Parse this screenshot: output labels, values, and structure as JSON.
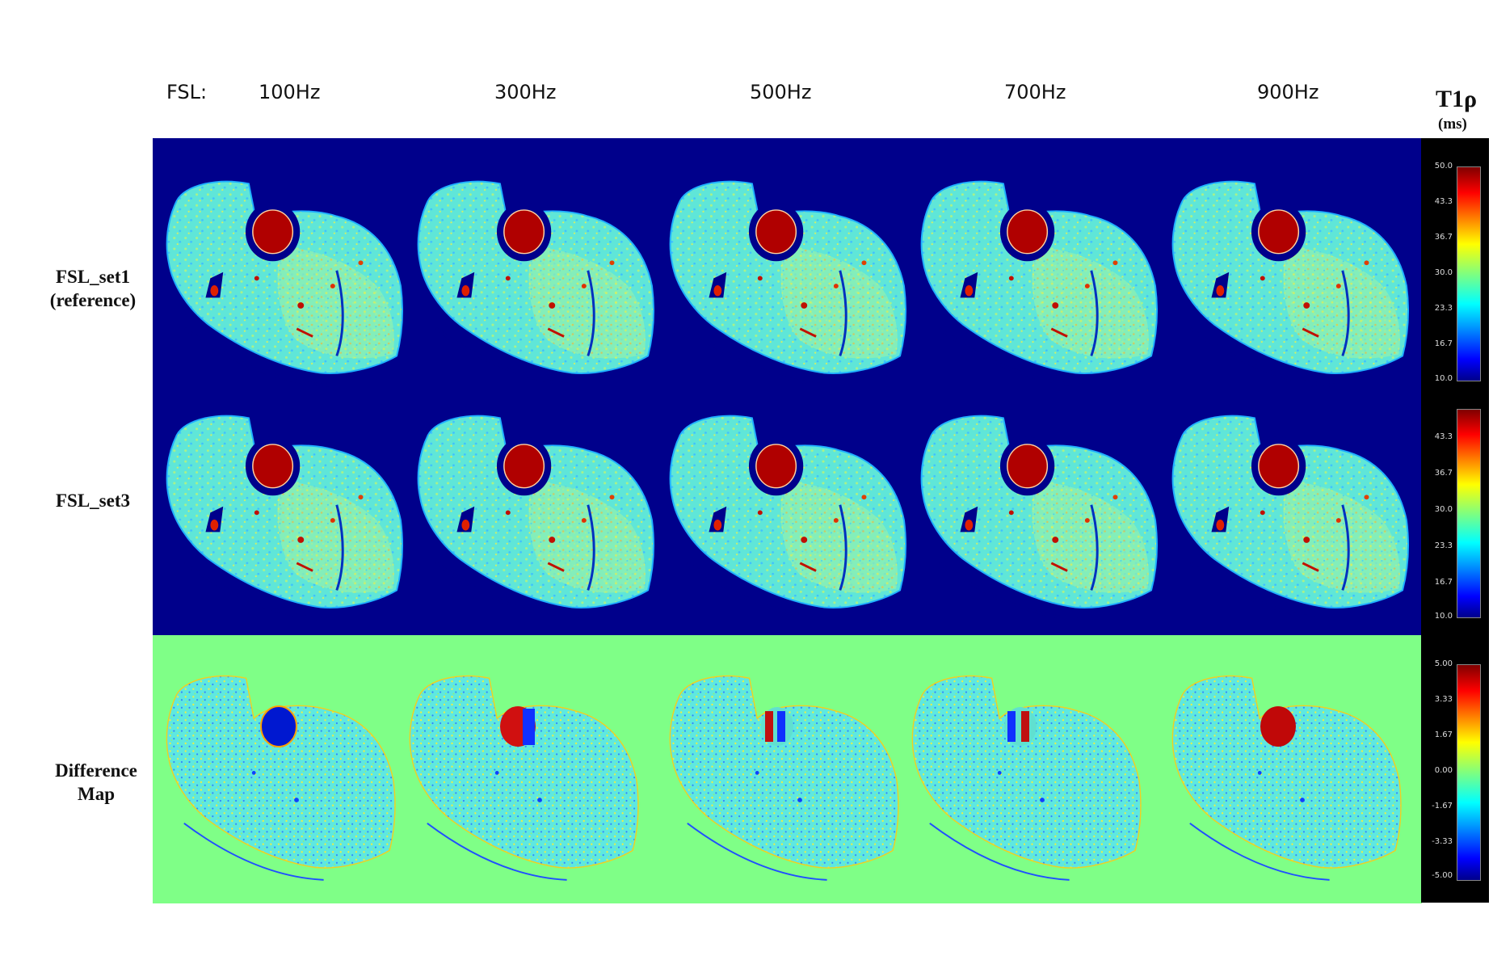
{
  "header": {
    "prefix": "FSL:",
    "frequencies": [
      "100Hz",
      "300Hz",
      "500Hz",
      "700Hz",
      "900Hz"
    ]
  },
  "rows": {
    "row1_line1": "FSL_set1",
    "row1_line2": "(reference)",
    "row2": "FSL_set3",
    "row3_line1": "Difference",
    "row3_line2": "Map"
  },
  "colorbar": {
    "title": "T1ρ",
    "unit": "(ms)",
    "ticks_set1": [
      "50.0",
      "43.3",
      "36.7",
      "30.0",
      "23.3",
      "16.7",
      "10.0"
    ],
    "ticks_set3": [
      "43.3",
      "36.7",
      "30.0",
      "23.3",
      "16.7",
      "10.0"
    ],
    "ticks_diff": [
      "5.00",
      "3.33",
      "1.67",
      "0.00",
      "-1.67",
      "-3.33",
      "-5.00"
    ]
  },
  "colors": {
    "map_background": "#00008b",
    "diff_background": "#7fff87",
    "tissue": "#5fe6d8",
    "hot": "#b00000"
  }
}
